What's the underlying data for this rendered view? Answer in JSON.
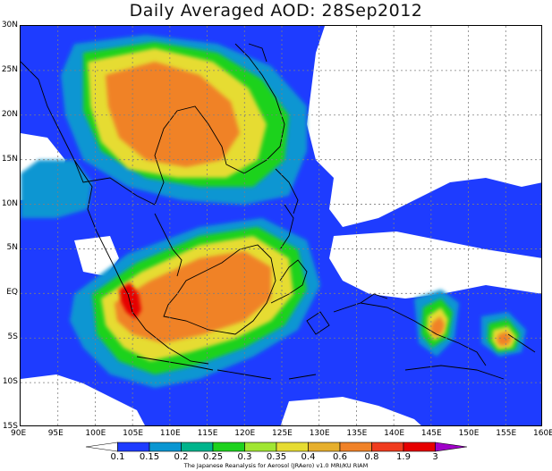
{
  "title": "Daily Averaged AOD: 28Sep2012",
  "lat_ticks": [
    "30N",
    "25N",
    "20N",
    "15N",
    "10N",
    "5N",
    "EQ",
    "5S",
    "10S",
    "15S"
  ],
  "lon_ticks": [
    "90E",
    "95E",
    "100E",
    "105E",
    "110E",
    "115E",
    "120E",
    "125E",
    "130E",
    "135E",
    "140E",
    "145E",
    "150E",
    "155E",
    "160E"
  ],
  "colorbar": {
    "labels": [
      "0.1",
      "0.15",
      "0.2",
      "0.25",
      "0.3",
      "0.35",
      "0.4",
      "0.6",
      "0.8",
      "1.9",
      "3"
    ],
    "colors": [
      "#ffffff",
      "#1e3cff",
      "#0a96d2",
      "#00b48c",
      "#1ed21e",
      "#a0e632",
      "#e6dc32",
      "#e6af2d",
      "#f08228",
      "#f03c1e",
      "#e60000",
      "#a000c8"
    ]
  },
  "credit": "The Japanese Reanalysis for Aerosol (JRAero) v1.0 MRI/KU RIAM",
  "map": {
    "lon_range": [
      90,
      160
    ],
    "lat_range": [
      -15,
      30
    ],
    "grid": true,
    "projection": "equirectangular",
    "field": "aerosol optical depth"
  }
}
